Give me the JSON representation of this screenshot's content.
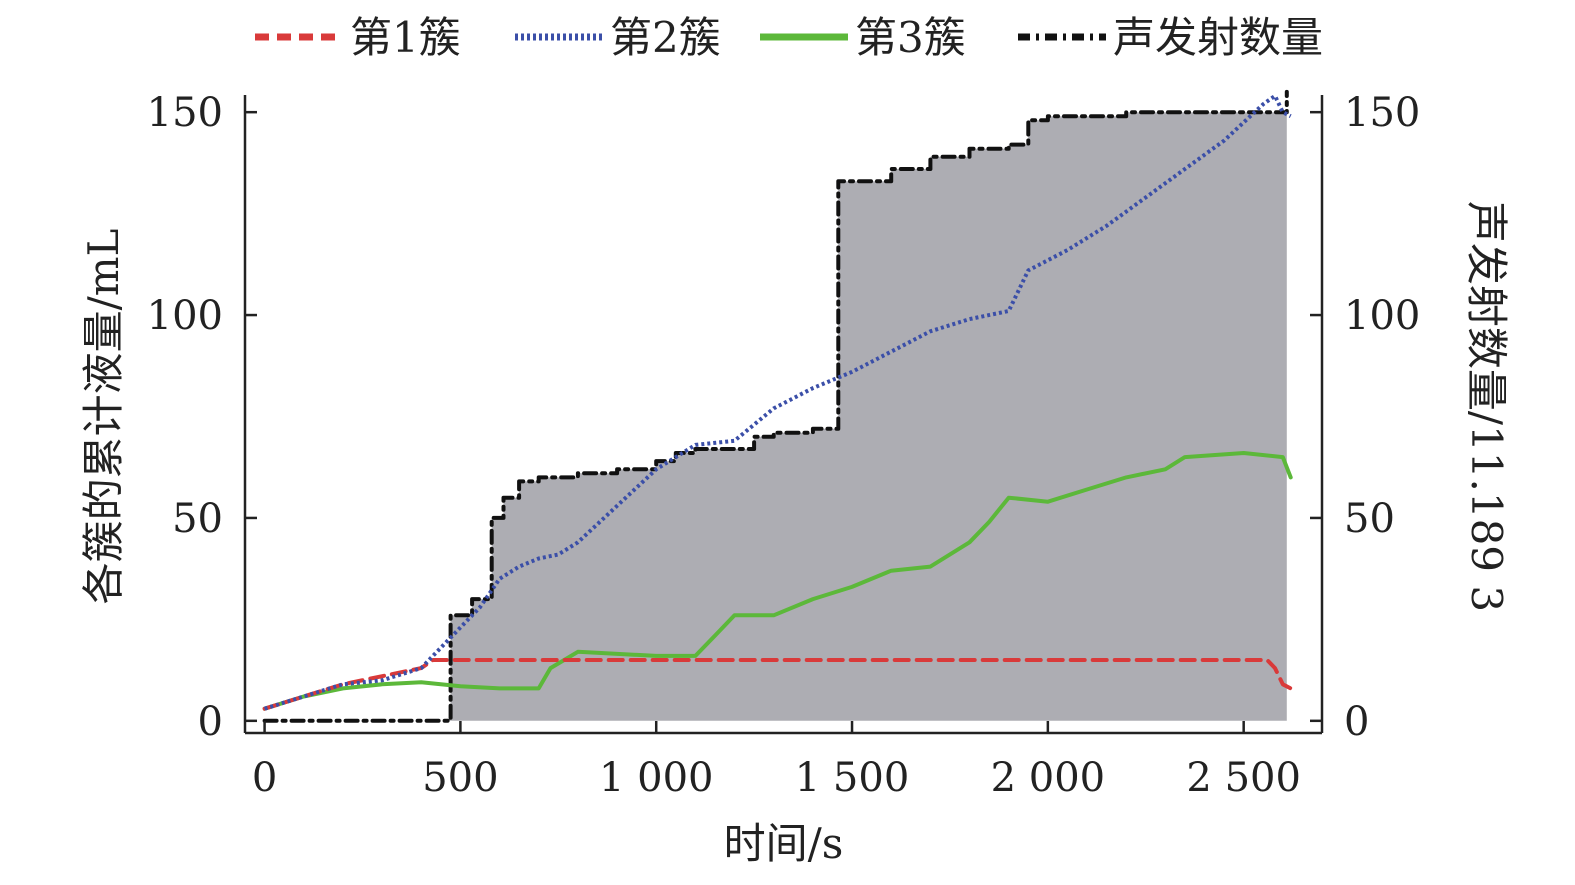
{
  "chart_data": {
    "type": "line",
    "xlabel": "时间/s",
    "ylabel_left": "各簇的累计液量/mL",
    "ylabel_right": "声发射数量/11.189 3",
    "xlim": [
      -50,
      2700
    ],
    "ylim": [
      -3,
      153
    ],
    "x_ticks": [
      0,
      500,
      1000,
      1500,
      2000,
      2500
    ],
    "x_tick_labels": [
      "0",
      "500",
      "1 000",
      "1 500",
      "2 000",
      "2 500"
    ],
    "y_ticks": [
      0,
      50,
      100,
      150
    ],
    "y_tick_labels": [
      "0",
      "50",
      "100",
      "150"
    ],
    "y_right_tick_labels": [
      "0",
      "50",
      "100",
      "150"
    ],
    "legend_position": "top",
    "series": [
      {
        "name": "第1簇",
        "color": "#d93a3a",
        "style": "dashed",
        "points": [
          [
            0,
            3
          ],
          [
            100,
            6
          ],
          [
            200,
            9
          ],
          [
            300,
            11
          ],
          [
            400,
            13
          ],
          [
            430,
            15
          ],
          [
            500,
            15
          ],
          [
            1000,
            15
          ],
          [
            1500,
            15
          ],
          [
            2000,
            15
          ],
          [
            2500,
            15
          ],
          [
            2560,
            15
          ],
          [
            2580,
            13
          ],
          [
            2600,
            9
          ],
          [
            2620,
            8
          ]
        ]
      },
      {
        "name": "第2簇",
        "color": "#3b4fa8",
        "style": "dotted",
        "points": [
          [
            0,
            3
          ],
          [
            100,
            6
          ],
          [
            200,
            9
          ],
          [
            300,
            10
          ],
          [
            400,
            13
          ],
          [
            440,
            17
          ],
          [
            500,
            23
          ],
          [
            550,
            28
          ],
          [
            600,
            35
          ],
          [
            650,
            38
          ],
          [
            700,
            40
          ],
          [
            750,
            41
          ],
          [
            800,
            44
          ],
          [
            900,
            53
          ],
          [
            1000,
            62
          ],
          [
            1100,
            68
          ],
          [
            1200,
            69
          ],
          [
            1300,
            77
          ],
          [
            1400,
            82
          ],
          [
            1500,
            86
          ],
          [
            1600,
            91
          ],
          [
            1700,
            96
          ],
          [
            1800,
            99
          ],
          [
            1900,
            101
          ],
          [
            1950,
            111
          ],
          [
            2050,
            116
          ],
          [
            2150,
            122
          ],
          [
            2250,
            129
          ],
          [
            2350,
            136
          ],
          [
            2450,
            143
          ],
          [
            2550,
            152
          ],
          [
            2580,
            154
          ],
          [
            2600,
            150
          ],
          [
            2620,
            149
          ]
        ]
      },
      {
        "name": "第3簇",
        "color": "#5cb83a",
        "style": "solid",
        "points": [
          [
            0,
            3
          ],
          [
            100,
            6
          ],
          [
            200,
            8
          ],
          [
            300,
            9
          ],
          [
            400,
            9.5
          ],
          [
            500,
            8.5
          ],
          [
            600,
            8
          ],
          [
            700,
            8
          ],
          [
            730,
            13
          ],
          [
            800,
            17
          ],
          [
            1000,
            16
          ],
          [
            1100,
            16
          ],
          [
            1150,
            21
          ],
          [
            1200,
            26
          ],
          [
            1300,
            26
          ],
          [
            1400,
            30
          ],
          [
            1500,
            33
          ],
          [
            1600,
            37
          ],
          [
            1700,
            38
          ],
          [
            1800,
            44
          ],
          [
            1850,
            49
          ],
          [
            1900,
            55
          ],
          [
            2000,
            54
          ],
          [
            2100,
            57
          ],
          [
            2200,
            60
          ],
          [
            2300,
            62
          ],
          [
            2350,
            65
          ],
          [
            2500,
            66
          ],
          [
            2600,
            65
          ],
          [
            2620,
            60
          ]
        ]
      },
      {
        "name": "声发射数量",
        "color": "#111111",
        "style": "dashdot",
        "points": [
          [
            0,
            0
          ],
          [
            100,
            0
          ],
          [
            200,
            0
          ],
          [
            300,
            0
          ],
          [
            400,
            0
          ],
          [
            470,
            0.5
          ],
          [
            475,
            26
          ],
          [
            530,
            30
          ],
          [
            580,
            50
          ],
          [
            610,
            55
          ],
          [
            650,
            59
          ],
          [
            700,
            60
          ],
          [
            800,
            61
          ],
          [
            900,
            62
          ],
          [
            1000,
            64
          ],
          [
            1050,
            66
          ],
          [
            1100,
            67
          ],
          [
            1200,
            67
          ],
          [
            1250,
            70
          ],
          [
            1300,
            71
          ],
          [
            1400,
            72
          ],
          [
            1460,
            72
          ],
          [
            1465,
            133
          ],
          [
            1600,
            136
          ],
          [
            1700,
            139
          ],
          [
            1800,
            141
          ],
          [
            1900,
            142
          ],
          [
            1950,
            148
          ],
          [
            2000,
            149
          ],
          [
            2200,
            150
          ],
          [
            2400,
            150
          ],
          [
            2600,
            150
          ],
          [
            2610,
            155
          ]
        ]
      }
    ],
    "filled_series": "声发射数量",
    "fill_color": "#adadb3"
  }
}
